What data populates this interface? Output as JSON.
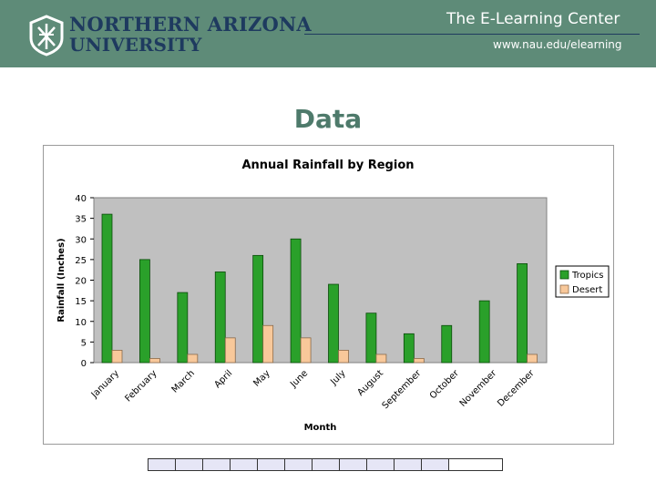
{
  "header": {
    "university_line1": "NORTHERN ARIZONA",
    "university_line2": "UNIVERSITY",
    "center_title": "The E-Learning Center",
    "center_url": "www.nau.edu/elearning",
    "logo_icon": "nau-logo-icon"
  },
  "slide": {
    "title": "Data"
  },
  "colors": {
    "header_bg": "#5e8b78",
    "tropics": "#2aa02a",
    "desert": "#f8c89a",
    "plot_bg": "#c0c0c0"
  },
  "chart_data": {
    "type": "bar",
    "title": "Annual Rainfall by Region",
    "xlabel": "Month",
    "ylabel": "Rainfall (Inches)",
    "ylim": [
      0,
      40
    ],
    "yticks": [
      0,
      5,
      10,
      15,
      20,
      25,
      30,
      35,
      40
    ],
    "categories": [
      "January",
      "February",
      "March",
      "April",
      "May",
      "June",
      "July",
      "August",
      "September",
      "October",
      "November",
      "December"
    ],
    "series": [
      {
        "name": "Tropics",
        "values": [
          36,
          25,
          17,
          22,
          26,
          30,
          19,
          12,
          7,
          9,
          15,
          24
        ]
      },
      {
        "name": "Desert",
        "values": [
          3,
          1,
          2,
          6,
          9,
          6,
          3,
          2,
          1,
          0,
          0,
          2
        ]
      }
    ],
    "legend_position": "right",
    "grid": false
  }
}
